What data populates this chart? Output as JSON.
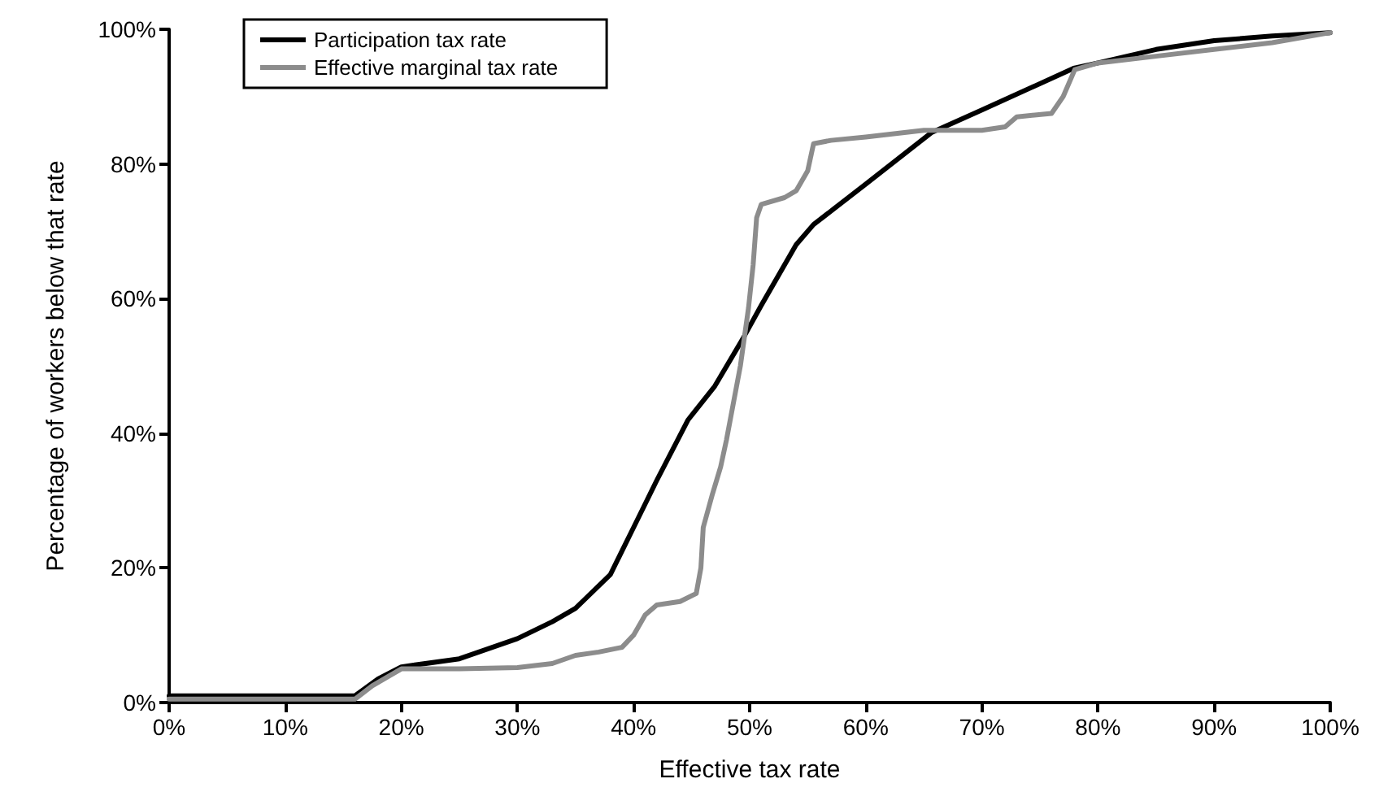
{
  "chart_data": {
    "type": "line",
    "xlabel": "Effective tax rate",
    "ylabel": "Percentage of workers below that rate",
    "xlim": [
      0,
      100
    ],
    "ylim": [
      0,
      100
    ],
    "xticks": [
      {
        "value": 0,
        "label": "0%"
      },
      {
        "value": 10,
        "label": "10%"
      },
      {
        "value": 20,
        "label": "20%"
      },
      {
        "value": 30,
        "label": "30%"
      },
      {
        "value": 40,
        "label": "40%"
      },
      {
        "value": 50,
        "label": "50%"
      },
      {
        "value": 60,
        "label": "60%"
      },
      {
        "value": 70,
        "label": "70%"
      },
      {
        "value": 80,
        "label": "80%"
      },
      {
        "value": 90,
        "label": "90%"
      },
      {
        "value": 100,
        "label": "100%"
      }
    ],
    "yticks": [
      {
        "value": 0,
        "label": "0%"
      },
      {
        "value": 20,
        "label": "20%"
      },
      {
        "value": 40,
        "label": "40%"
      },
      {
        "value": 60,
        "label": "60%"
      },
      {
        "value": 80,
        "label": "80%"
      },
      {
        "value": 100,
        "label": "100%"
      }
    ],
    "grid": false,
    "legend": "top left",
    "marker": "none",
    "line_style": "solid",
    "series": [
      {
        "name": "Participation tax rate",
        "color": "#000000",
        "x": [
          0,
          10,
          16,
          18,
          20,
          25,
          30,
          33,
          35,
          38,
          40,
          42,
          44.7,
          47,
          49.4,
          51,
          54,
          55.5,
          60,
          65.7,
          70,
          77.9,
          80,
          85,
          90,
          95,
          100
        ],
        "values": [
          1,
          1,
          1,
          3.5,
          5.3,
          6.5,
          9.5,
          12,
          14,
          19,
          26,
          33,
          42,
          47,
          54,
          59,
          68,
          71,
          77,
          84.7,
          88,
          94.2,
          95,
          97,
          98.3,
          99,
          99.5
        ]
      },
      {
        "name": "Effective marginal tax rate",
        "color": "#8c8c8c",
        "x": [
          0,
          10,
          16,
          17.5,
          19,
          20,
          25,
          30,
          33,
          35,
          37,
          39,
          40,
          41,
          42,
          44,
          45.4,
          45.8,
          46,
          46.8,
          47.5,
          48,
          49.2,
          49.9,
          50.3,
          50.6,
          51,
          53,
          54,
          55,
          55.5,
          57,
          60,
          65,
          70,
          72,
          73,
          76,
          77,
          78,
          80,
          85,
          90,
          95,
          100
        ],
        "values": [
          0.5,
          0.5,
          0.5,
          2.5,
          4,
          5,
          5,
          5.2,
          5.8,
          7,
          7.5,
          8.2,
          10,
          13,
          14.5,
          15,
          16.2,
          20,
          26,
          31,
          35,
          39,
          50,
          58.6,
          65,
          72,
          74,
          75,
          76,
          79,
          83,
          83.5,
          84,
          85,
          85,
          85.5,
          87,
          87.5,
          90,
          94,
          95,
          96,
          97,
          98,
          99.5
        ]
      }
    ]
  }
}
